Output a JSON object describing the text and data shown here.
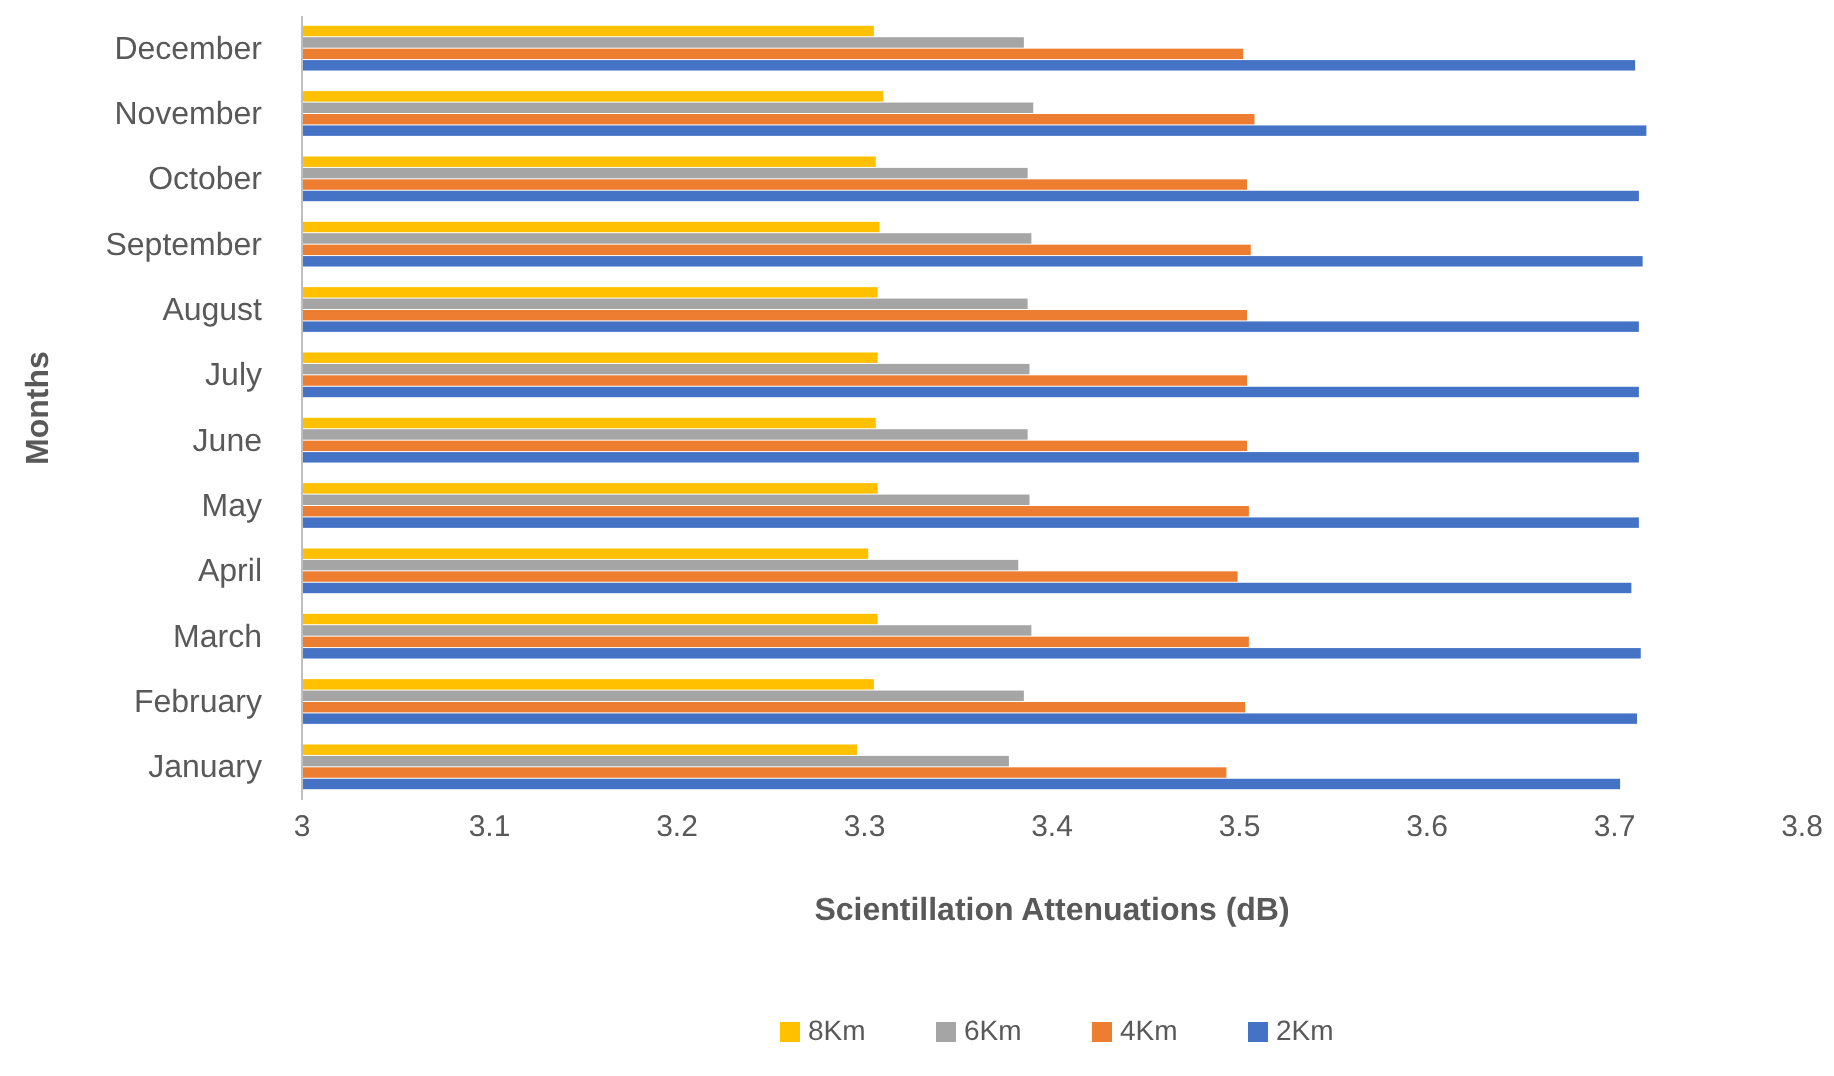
{
  "chart_data": {
    "type": "bar",
    "orientation": "horizontal",
    "xlabel": "Scientillation Attenuations (dB)",
    "ylabel": "Months",
    "categories": [
      "December",
      "November",
      "October",
      "September",
      "August",
      "July",
      "June",
      "May",
      "April",
      "March",
      "February",
      "January"
    ],
    "series": [
      {
        "name": "8Km",
        "color": "#ffc000",
        "values": [
          3.305,
          3.31,
          3.306,
          3.308,
          3.307,
          3.307,
          3.306,
          3.307,
          3.302,
          3.307,
          3.305,
          3.296
        ]
      },
      {
        "name": "6Km",
        "color": "#a5a5a5",
        "values": [
          3.385,
          3.39,
          3.387,
          3.389,
          3.387,
          3.388,
          3.387,
          3.388,
          3.382,
          3.389,
          3.385,
          3.377
        ]
      },
      {
        "name": "4Km",
        "color": "#ed7d31",
        "values": [
          3.502,
          3.508,
          3.504,
          3.506,
          3.504,
          3.504,
          3.504,
          3.505,
          3.499,
          3.505,
          3.503,
          3.493
        ]
      },
      {
        "name": "2Km",
        "color": "#4472c4",
        "values": [
          3.711,
          3.717,
          3.713,
          3.715,
          3.713,
          3.713,
          3.713,
          3.713,
          3.709,
          3.714,
          3.712,
          3.703
        ]
      }
    ],
    "xlim": [
      3,
      3.8
    ],
    "xticks": [
      3,
      3.1,
      3.2,
      3.3,
      3.4,
      3.5,
      3.6,
      3.7,
      3.8
    ],
    "grid": false,
    "legend": "bottom"
  }
}
